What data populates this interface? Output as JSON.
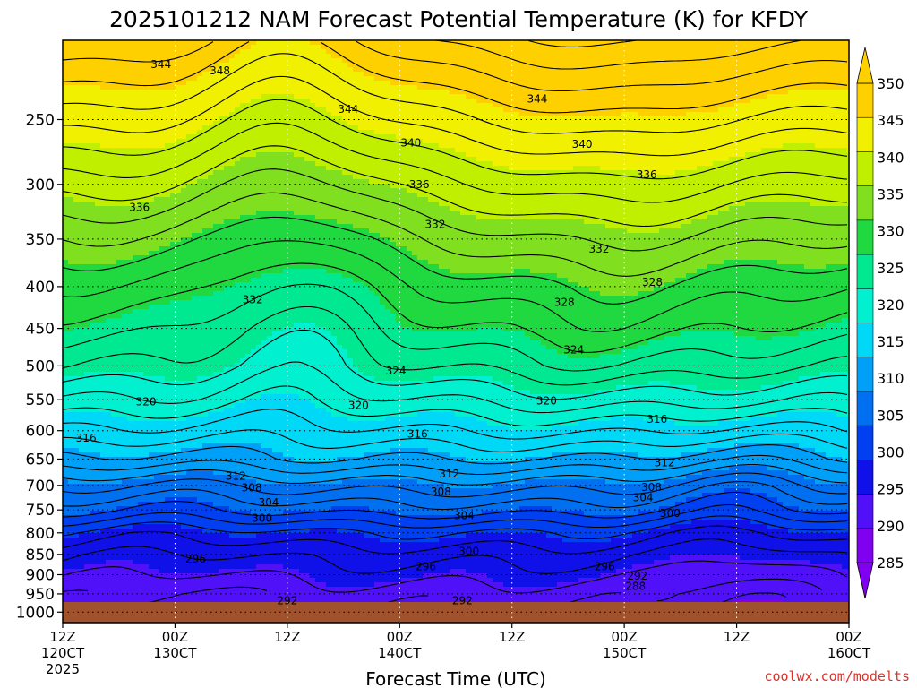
{
  "chart_data": {
    "type": "heatmap",
    "title": "2025101212 NAM Forecast Potential Temperature (K) for KFDY",
    "xlabel": "Forecast Time (UTC)",
    "ylabel": "",
    "x_ticks": [
      {
        "label": "12Z",
        "sub": "120CT",
        "sub2": "2025"
      },
      {
        "label": "00Z",
        "sub": "130CT",
        "sub2": ""
      },
      {
        "label": "12Z",
        "sub": "",
        "sub2": ""
      },
      {
        "label": "00Z",
        "sub": "140CT",
        "sub2": ""
      },
      {
        "label": "12Z",
        "sub": "",
        "sub2": ""
      },
      {
        "label": "00Z",
        "sub": "150CT",
        "sub2": ""
      },
      {
        "label": "12Z",
        "sub": "",
        "sub2": ""
      },
      {
        "label": "00Z",
        "sub": "160CT",
        "sub2": ""
      }
    ],
    "x_hours": [
      0,
      12,
      24,
      36,
      48,
      60,
      72,
      84
    ],
    "y_ticks": [
      250,
      300,
      350,
      400,
      450,
      500,
      550,
      600,
      650,
      700,
      750,
      800,
      850,
      900,
      950,
      1000
    ],
    "y_range_hpa": [
      200,
      1030
    ],
    "y_scale": "log-pressure",
    "x_range_hours": [
      0,
      84
    ],
    "colorbar": {
      "labels": [
        350,
        345,
        340,
        335,
        330,
        325,
        320,
        315,
        310,
        305,
        300,
        295,
        290,
        285
      ],
      "min": 282.5,
      "max": 352.5,
      "step": 2.5,
      "extend": "both"
    },
    "profile_hpa": [
      200,
      250,
      300,
      350,
      400,
      450,
      500,
      550,
      600,
      650,
      700,
      750,
      800,
      850,
      900,
      950,
      1000
    ],
    "profile_theta_k": [
      352,
      345,
      339,
      334,
      330,
      327,
      324,
      320,
      316,
      312,
      307,
      303,
      298,
      295,
      293,
      291,
      290
    ],
    "contour_labels": [
      {
        "v": "344",
        "h": 10.5,
        "p": 214
      },
      {
        "v": "348",
        "h": 16.8,
        "p": 218
      },
      {
        "v": "344",
        "h": 30.5,
        "p": 243
      },
      {
        "v": "344",
        "h": 50.7,
        "p": 236
      },
      {
        "v": "340",
        "h": 37.2,
        "p": 267
      },
      {
        "v": "340",
        "h": 55.5,
        "p": 268
      },
      {
        "v": "336",
        "h": 8.2,
        "p": 320
      },
      {
        "v": "336",
        "h": 38.1,
        "p": 300
      },
      {
        "v": "336",
        "h": 62.4,
        "p": 292
      },
      {
        "v": "332",
        "h": 39.8,
        "p": 336
      },
      {
        "v": "332",
        "h": 57.3,
        "p": 360
      },
      {
        "v": "332",
        "h": 20.3,
        "p": 415
      },
      {
        "v": "328",
        "h": 63.0,
        "p": 395
      },
      {
        "v": "328",
        "h": 53.6,
        "p": 418
      },
      {
        "v": "324",
        "h": 54.6,
        "p": 478
      },
      {
        "v": "324",
        "h": 35.6,
        "p": 507
      },
      {
        "v": "320",
        "h": 8.9,
        "p": 553
      },
      {
        "v": "320",
        "h": 31.6,
        "p": 559
      },
      {
        "v": "320",
        "h": 51.7,
        "p": 552
      },
      {
        "v": "316",
        "h": 2.5,
        "p": 613
      },
      {
        "v": "316",
        "h": 37.9,
        "p": 606
      },
      {
        "v": "316",
        "h": 63.5,
        "p": 581
      },
      {
        "v": "312",
        "h": 18.5,
        "p": 682
      },
      {
        "v": "312",
        "h": 41.3,
        "p": 678
      },
      {
        "v": "312",
        "h": 64.3,
        "p": 657
      },
      {
        "v": "308",
        "h": 20.2,
        "p": 705
      },
      {
        "v": "308",
        "h": 40.4,
        "p": 713
      },
      {
        "v": "308",
        "h": 62.9,
        "p": 704
      },
      {
        "v": "304",
        "h": 22.0,
        "p": 735
      },
      {
        "v": "304",
        "h": 42.9,
        "p": 762
      },
      {
        "v": "304",
        "h": 62.0,
        "p": 725
      },
      {
        "v": "300",
        "h": 21.3,
        "p": 768
      },
      {
        "v": "300",
        "h": 43.4,
        "p": 843
      },
      {
        "v": "300",
        "h": 64.9,
        "p": 757
      },
      {
        "v": "296",
        "h": 14.2,
        "p": 861
      },
      {
        "v": "296",
        "h": 38.8,
        "p": 880
      },
      {
        "v": "296",
        "h": 57.9,
        "p": 880
      },
      {
        "v": "292",
        "h": 24.0,
        "p": 968
      },
      {
        "v": "292",
        "h": 42.7,
        "p": 968
      },
      {
        "v": "292",
        "h": 61.4,
        "p": 903
      },
      {
        "v": "288",
        "h": 61.2,
        "p": 930
      }
    ],
    "grid": true,
    "legend_placement": "right colorbar",
    "credit": "coolwx.com/modelts",
    "colors": {
      "ground": "#a0522d",
      "scale": [
        "#8000f0",
        "#5010f8",
        "#1010e8",
        "#0040f0",
        "#0070f0",
        "#00a0f8",
        "#00d8f8",
        "#00f0d0",
        "#00e890",
        "#20d840",
        "#80e020",
        "#c0f000",
        "#f0f000",
        "#ffd000"
      ]
    }
  }
}
